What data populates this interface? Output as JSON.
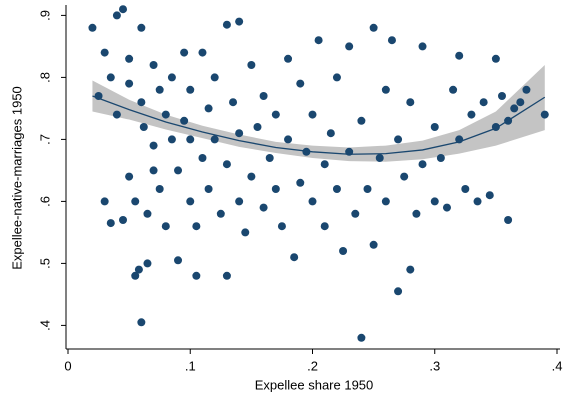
{
  "chart_data": {
    "type": "scatter",
    "x_label": "Expellee share 1950",
    "y_label": "Expellee-native-marriages 1950",
    "xlim": [
      0,
      0.4
    ],
    "ylim": [
      0.37,
      0.92
    ],
    "xticks": [
      0,
      {
        "value": 0.1,
        "label": ".1"
      },
      {
        "value": 0.2,
        "label": ".2"
      },
      {
        "value": 0.3,
        "label": ".3"
      },
      {
        "value": 0.4,
        "label": ".4"
      }
    ],
    "yticks": [
      {
        "value": 0.4,
        "label": ".4"
      },
      {
        "value": 0.5,
        "label": ".5"
      },
      {
        "value": 0.6,
        "label": ".6"
      },
      {
        "value": 0.7,
        "label": ".7"
      },
      {
        "value": 0.8,
        "label": ".8"
      },
      {
        "value": 0.9,
        "label": ".9"
      }
    ],
    "grid": false,
    "series": [
      {
        "color": "#1a476f",
        "x": [
          0.02,
          0.025,
          0.03,
          0.03,
          0.035,
          0.035,
          0.04,
          0.04,
          0.045,
          0.045,
          0.05,
          0.05,
          0.05,
          0.055,
          0.055,
          0.058,
          0.06,
          0.06,
          0.06,
          0.062,
          0.065,
          0.065,
          0.07,
          0.07,
          0.07,
          0.075,
          0.075,
          0.08,
          0.08,
          0.085,
          0.085,
          0.09,
          0.09,
          0.095,
          0.095,
          0.1,
          0.1,
          0.1,
          0.105,
          0.105,
          0.11,
          0.11,
          0.115,
          0.115,
          0.12,
          0.12,
          0.125,
          0.13,
          0.13,
          0.13,
          0.135,
          0.14,
          0.14,
          0.14,
          0.145,
          0.15,
          0.15,
          0.155,
          0.16,
          0.16,
          0.165,
          0.17,
          0.17,
          0.175,
          0.18,
          0.18,
          0.185,
          0.19,
          0.19,
          0.195,
          0.2,
          0.2,
          0.205,
          0.21,
          0.21,
          0.215,
          0.22,
          0.22,
          0.225,
          0.23,
          0.23,
          0.235,
          0.24,
          0.24,
          0.245,
          0.25,
          0.25,
          0.255,
          0.26,
          0.26,
          0.265,
          0.27,
          0.27,
          0.275,
          0.28,
          0.28,
          0.285,
          0.29,
          0.29,
          0.3,
          0.3,
          0.305,
          0.31,
          0.315,
          0.32,
          0.32,
          0.325,
          0.33,
          0.335,
          0.34,
          0.345,
          0.35,
          0.35,
          0.355,
          0.36,
          0.36,
          0.365,
          0.37,
          0.375,
          0.39
        ],
        "values": [
          0.88,
          0.77,
          0.84,
          0.6,
          0.565,
          0.8,
          0.9,
          0.74,
          0.91,
          0.57,
          0.83,
          0.79,
          0.64,
          0.48,
          0.6,
          0.49,
          0.405,
          0.88,
          0.76,
          0.72,
          0.58,
          0.5,
          0.82,
          0.69,
          0.65,
          0.78,
          0.62,
          0.74,
          0.56,
          0.8,
          0.7,
          0.505,
          0.65,
          0.84,
          0.73,
          0.6,
          0.7,
          0.78,
          0.56,
          0.48,
          0.84,
          0.67,
          0.75,
          0.62,
          0.8,
          0.7,
          0.58,
          0.885,
          0.48,
          0.66,
          0.76,
          0.89,
          0.71,
          0.6,
          0.55,
          0.82,
          0.64,
          0.72,
          0.59,
          0.77,
          0.67,
          0.62,
          0.74,
          0.56,
          0.83,
          0.7,
          0.51,
          0.79,
          0.63,
          0.68,
          0.6,
          0.74,
          0.86,
          0.66,
          0.56,
          0.71,
          0.62,
          0.8,
          0.52,
          0.85,
          0.68,
          0.58,
          0.38,
          0.73,
          0.62,
          0.88,
          0.53,
          0.67,
          0.78,
          0.6,
          0.86,
          0.455,
          0.7,
          0.64,
          0.49,
          0.76,
          0.58,
          0.85,
          0.66,
          0.72,
          0.6,
          0.67,
          0.59,
          0.78,
          0.835,
          0.7,
          0.62,
          0.74,
          0.6,
          0.76,
          0.61,
          0.83,
          0.72,
          0.77,
          0.57,
          0.73,
          0.75,
          0.76,
          0.78,
          0.74
        ]
      }
    ],
    "fit": {
      "color": "#1a476f",
      "band_color": "#c4c4c4",
      "x": [
        0.02,
        0.05,
        0.08,
        0.11,
        0.14,
        0.17,
        0.2,
        0.23,
        0.26,
        0.29,
        0.32,
        0.35,
        0.39
      ],
      "values": [
        0.77,
        0.748,
        0.728,
        0.712,
        0.698,
        0.687,
        0.68,
        0.676,
        0.677,
        0.683,
        0.696,
        0.718,
        0.768
      ],
      "lower": [
        0.745,
        0.732,
        0.716,
        0.702,
        0.688,
        0.678,
        0.67,
        0.665,
        0.664,
        0.668,
        0.677,
        0.69,
        0.715
      ],
      "upper": [
        0.795,
        0.764,
        0.74,
        0.722,
        0.708,
        0.696,
        0.69,
        0.687,
        0.69,
        0.698,
        0.715,
        0.745,
        0.82
      ]
    }
  }
}
